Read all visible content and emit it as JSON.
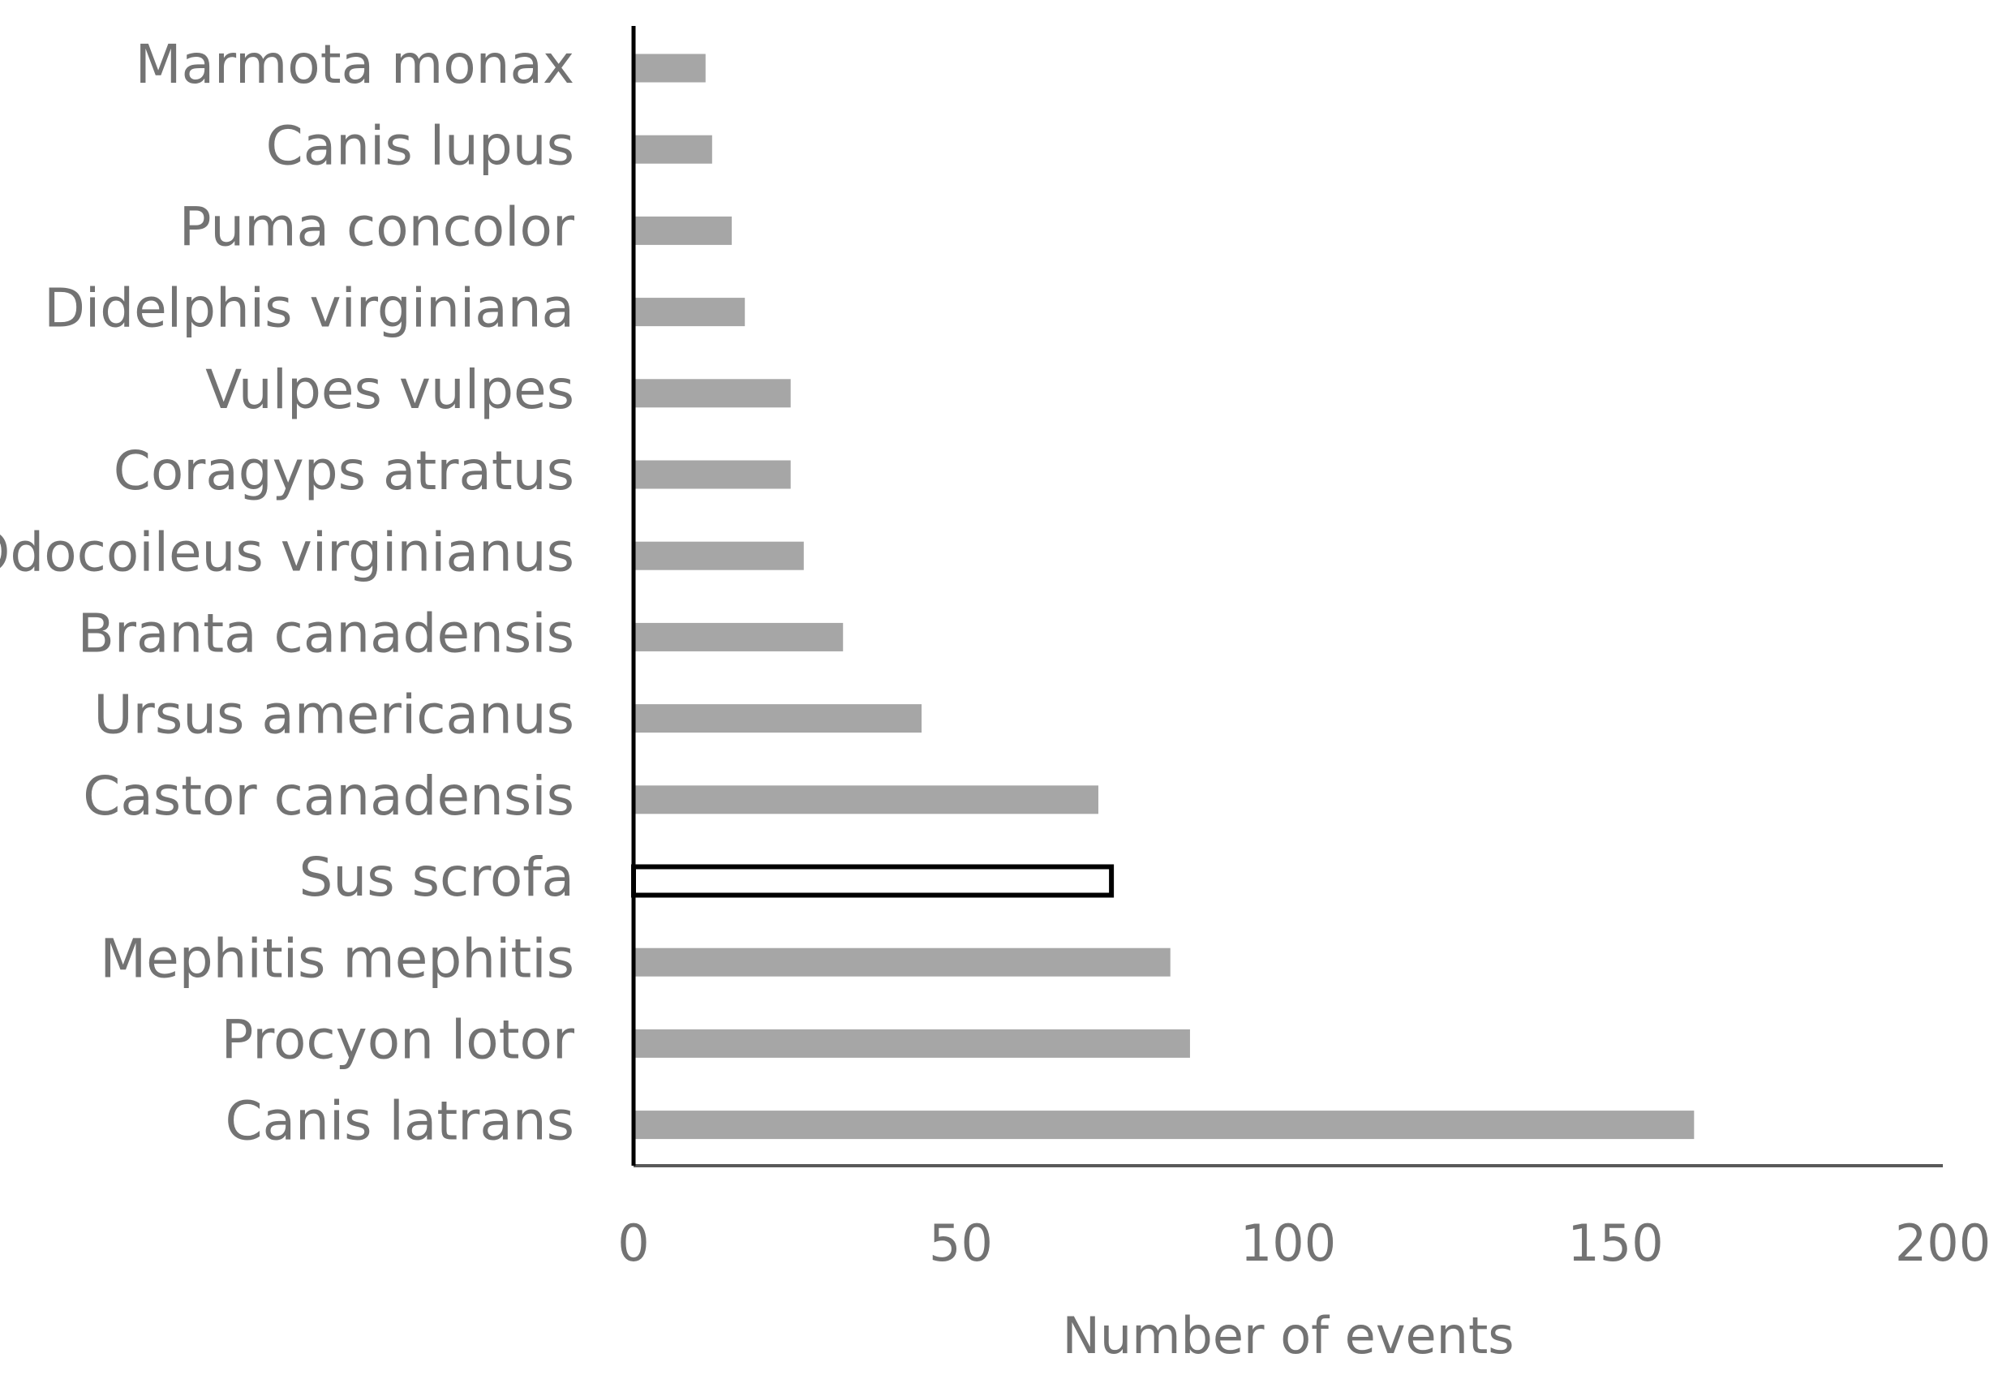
{
  "chart_data": {
    "type": "bar",
    "orientation": "horizontal",
    "categories": [
      "Marmota monax",
      "Canis lupus",
      "Puma concolor",
      "Didelphis virginiana",
      "Vulpes vulpes",
      "Coragyps atratus",
      "Odocoileus virginianus",
      "Branta canadensis",
      "Ursus americanus",
      "Castor canadensis",
      "Sus scrofa",
      "Mephitis mephitis",
      "Procyon lotor",
      "Canis latrans"
    ],
    "values": [
      11,
      12,
      15,
      17,
      24,
      24,
      26,
      32,
      44,
      71,
      73,
      82,
      85,
      162
    ],
    "colors": [
      "#a6a6a6",
      "#a6a6a6",
      "#a6a6a6",
      "#a6a6a6",
      "#a6a6a6",
      "#a6a6a6",
      "#a6a6a6",
      "#a6a6a6",
      "#a6a6a6",
      "#a6a6a6",
      "#ffffff",
      "#a6a6a6",
      "#a6a6a6",
      "#a6a6a6"
    ],
    "edge_colors": [
      "none",
      "none",
      "none",
      "none",
      "none",
      "none",
      "none",
      "none",
      "none",
      "none",
      "#000000",
      "none",
      "none",
      "none"
    ],
    "x_label": "Number of events",
    "xlim": [
      0,
      200
    ],
    "xticks": [
      0,
      50,
      100,
      150,
      200
    ],
    "grid": false
  }
}
